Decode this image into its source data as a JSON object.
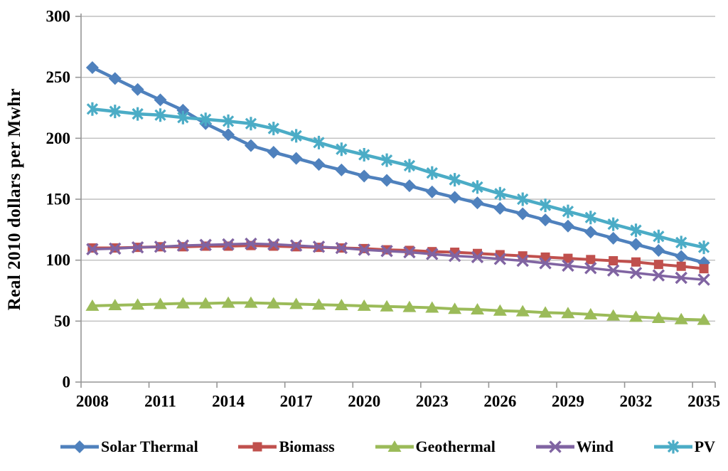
{
  "figure": {
    "background": "#FFFFFF",
    "gridline_color": "#BFBFBF",
    "axis_color": "#969696",
    "text_color": "#000000"
  },
  "chart_data": {
    "type": "line",
    "title": "",
    "xlabel": "",
    "ylabel": "Real 2010 dollars per Mwhr",
    "ylim": [
      0,
      300
    ],
    "yticks": [
      0,
      50,
      100,
      150,
      200,
      250,
      300
    ],
    "grid": "horizontal-only",
    "legend_position": "bottom",
    "x": [
      2008,
      2009,
      2010,
      2011,
      2012,
      2013,
      2014,
      2015,
      2016,
      2017,
      2018,
      2019,
      2020,
      2021,
      2022,
      2023,
      2024,
      2025,
      2026,
      2027,
      2028,
      2029,
      2030,
      2031,
      2032,
      2033,
      2034,
      2035
    ],
    "xtick_labels": [
      "2008",
      "2011",
      "2014",
      "2017",
      "2020",
      "2023",
      "2026",
      "2029",
      "2032",
      "2035"
    ],
    "series": [
      {
        "name": "Solar Thermal",
        "color": "#4F81BD",
        "marker": "diamond",
        "values": [
          258,
          249,
          240,
          231.5,
          223,
          212,
          203,
          194,
          188.5,
          183.5,
          178.5,
          174,
          169,
          165.5,
          161,
          156,
          151.5,
          147,
          142.5,
          138,
          133,
          128,
          123,
          118,
          113,
          108,
          103,
          98
        ]
      },
      {
        "name": "Biomass",
        "color": "#C0504D",
        "marker": "square",
        "values": [
          110,
          110,
          110.5,
          111,
          111,
          111.5,
          111.5,
          112,
          111.5,
          111,
          110.5,
          110,
          109.5,
          108.5,
          108,
          107,
          106.5,
          105.5,
          104.5,
          103.5,
          102.5,
          101.5,
          100.5,
          99.5,
          98.5,
          96.5,
          95,
          93
        ]
      },
      {
        "name": "Geothermal",
        "color": "#9BBB59",
        "marker": "triangle",
        "values": [
          62.5,
          63,
          63.5,
          64,
          64.5,
          64.5,
          65,
          65,
          64.5,
          64,
          63.5,
          63,
          62.5,
          62,
          61.5,
          61,
          60,
          59.5,
          58.5,
          58,
          57,
          56.5,
          55.5,
          54.5,
          53.5,
          52.5,
          51.5,
          51
        ]
      },
      {
        "name": "Wind",
        "color": "#8064A2",
        "marker": "x",
        "values": [
          109,
          109.5,
          110.5,
          111,
          112,
          112.5,
          113,
          113.5,
          113,
          112,
          111,
          110,
          108.5,
          107.5,
          106.5,
          105,
          103.5,
          102.5,
          101,
          99.5,
          97.5,
          95.5,
          93.5,
          91.5,
          89.5,
          87.5,
          85.5,
          84
        ]
      },
      {
        "name": "PV",
        "color": "#4BACC6",
        "marker": "asterisk",
        "values": [
          224,
          222,
          220,
          219,
          217,
          215.5,
          214,
          212,
          208,
          202,
          196.5,
          191,
          186.5,
          182,
          177.5,
          171.5,
          166,
          160,
          154.5,
          150,
          145,
          140,
          135,
          129.5,
          124.5,
          119.5,
          114.5,
          110.5
        ]
      }
    ]
  }
}
